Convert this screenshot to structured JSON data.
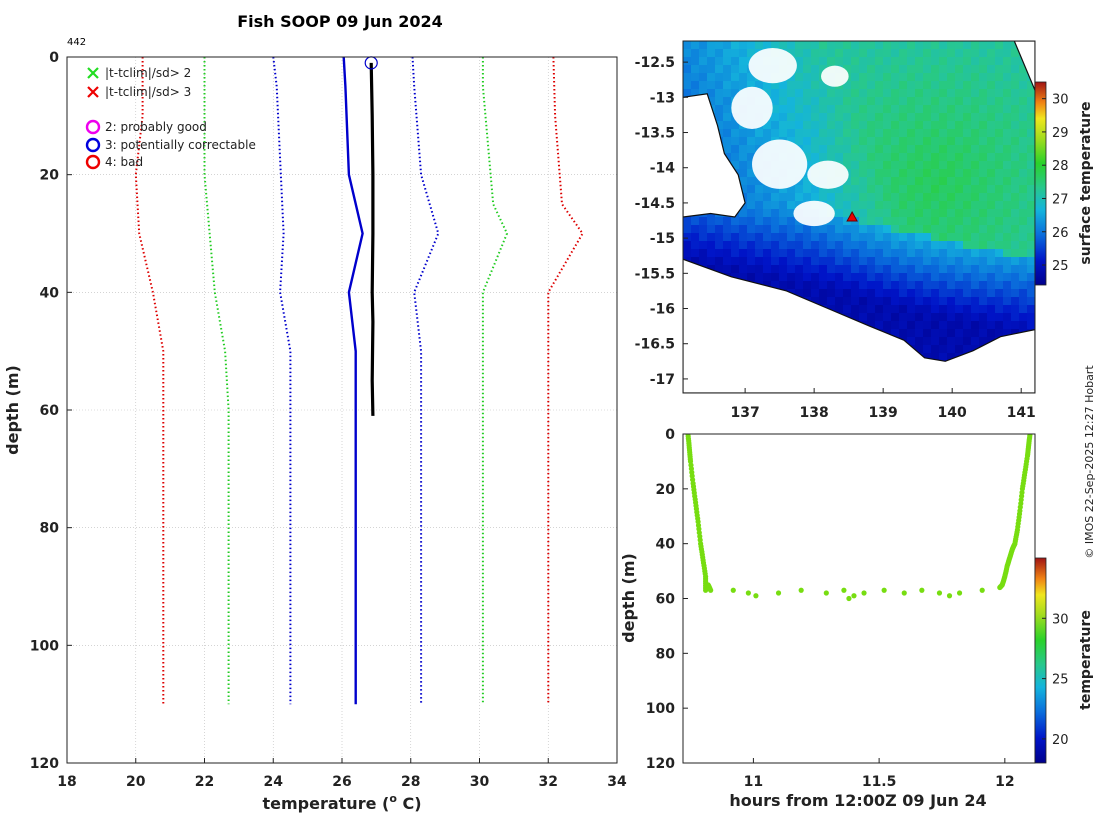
{
  "figure": {
    "title": "Fish SOOP 09 Jun 2024",
    "profile_id": "442",
    "credit": "© IMOS 22-Sep-2025 12:27 Hobart"
  },
  "legend": {
    "items": [
      {
        "label": "|t-tclim|/sd> 2",
        "symbol": "x",
        "color": "#22dd22"
      },
      {
        "label": "|t-tclim|/sd> 3",
        "symbol": "x",
        "color": "#ee0000"
      },
      {
        "label": "2: probably good",
        "symbol": "o",
        "color": "#ee00ee"
      },
      {
        "label": "3: potentially correctable",
        "symbol": "o",
        "color": "#0000dd"
      },
      {
        "label": "4: bad",
        "symbol": "o",
        "color": "#ee0000"
      }
    ]
  },
  "colors": {
    "profile": "#000000",
    "clim_mean": "#0000cc",
    "sd2": "#22cc22",
    "sd3": "#dd0000",
    "qc_marker": "#0000cc",
    "flag_marker": "#ee0000",
    "track_point": "#77dd11"
  },
  "chart_data": [
    {
      "id": "profile",
      "type": "line",
      "xlabel": "temperature (",
      "xlabel_sup": "o",
      "xlabel_tail": " C)",
      "ylabel": "depth (m)",
      "xlim": [
        18,
        34
      ],
      "ylim": [
        120,
        0
      ],
      "xticks": [
        18,
        20,
        22,
        24,
        26,
        28,
        30,
        32,
        34
      ],
      "yticks": [
        0,
        20,
        40,
        60,
        80,
        100,
        120
      ],
      "grid": true,
      "series": [
        {
          "name": "measured temperature",
          "style": "solid-thick",
          "color": "#000000",
          "x": [
            26.85,
            26.88,
            26.9,
            26.9,
            26.88,
            26.9,
            26.88,
            26.9
          ],
          "y": [
            1,
            10,
            20,
            30,
            40,
            45,
            55,
            61
          ]
        },
        {
          "name": "climatology mean",
          "style": "solid",
          "color": "#0000cc",
          "x": [
            26.05,
            26.1,
            26.2,
            26.6,
            26.2,
            26.4,
            26.4,
            26.4
          ],
          "y": [
            0,
            5,
            20,
            30,
            40,
            50,
            60,
            110
          ]
        },
        {
          "name": "clim -2sd",
          "style": "dotted",
          "color": "#0000cc",
          "x": [
            24.0,
            24.1,
            24.3,
            24.2,
            24.5,
            24.5
          ],
          "y": [
            0,
            5,
            30,
            40,
            50,
            110
          ]
        },
        {
          "name": "clim +2sd",
          "style": "dotted",
          "color": "#0000cc",
          "x": [
            28.05,
            28.1,
            28.3,
            28.8,
            28.1,
            28.3,
            28.3
          ],
          "y": [
            0,
            5,
            20,
            30,
            40,
            50,
            110
          ]
        },
        {
          "name": "clim -3sd low",
          "style": "dotted",
          "color": "#22cc22",
          "x": [
            22.0,
            22.0,
            22.0,
            22.3,
            22.6,
            22.7,
            22.7
          ],
          "y": [
            0,
            10,
            20,
            40,
            50,
            60,
            110
          ]
        },
        {
          "name": "clim +3sd high",
          "style": "dotted",
          "color": "#22cc22",
          "x": [
            30.1,
            30.1,
            30.4,
            30.8,
            30.1,
            30.1
          ],
          "y": [
            0,
            5,
            25,
            30,
            40,
            110
          ]
        },
        {
          "name": "clim -4sd low",
          "style": "dotted",
          "color": "#dd0000",
          "x": [
            20.2,
            20.2,
            20.0,
            20.1,
            20.5,
            20.8,
            20.8
          ],
          "y": [
            0,
            10,
            20,
            30,
            40,
            50,
            110
          ]
        },
        {
          "name": "clim +4sd high",
          "style": "dotted",
          "color": "#dd0000",
          "x": [
            32.15,
            32.2,
            32.4,
            33.0,
            32.0,
            32.0
          ],
          "y": [
            0,
            10,
            25,
            30,
            40,
            110
          ]
        }
      ],
      "markers": [
        {
          "name": "qc-flag-3-marker",
          "symbol": "o",
          "color": "#0000cc",
          "x": 26.85,
          "y": 1
        }
      ]
    },
    {
      "id": "map",
      "type": "heatmap",
      "xlim": [
        136.1,
        141.2
      ],
      "ylim": [
        -17.2,
        -12.2
      ],
      "xticks": [
        137,
        138,
        139,
        140,
        141
      ],
      "yticks": [
        -12.5,
        -13,
        -13.5,
        -14,
        -14.5,
        -15,
        -15.5,
        -16,
        -16.5,
        -17
      ],
      "colorbar": {
        "label": "surface temperature",
        "range": [
          24.4,
          30.5
        ],
        "ticks": [
          25,
          26,
          27,
          28,
          29,
          30
        ]
      },
      "sst_gradient": {
        "east_value": 27.2,
        "west_value": 25.0,
        "south_value": 24.8,
        "warm_center": [
          139.8,
          -14.2
        ]
      },
      "land_mask": [
        {
          "name": "north-west-coast",
          "points": [
            [
              136.1,
              -13.0
            ],
            [
              136.45,
              -12.95
            ],
            [
              136.6,
              -13.4
            ],
            [
              136.7,
              -13.8
            ],
            [
              136.9,
              -14.1
            ],
            [
              137.0,
              -14.5
            ],
            [
              136.85,
              -14.7
            ],
            [
              136.5,
              -14.65
            ],
            [
              136.1,
              -14.7
            ]
          ]
        },
        {
          "name": "south-coast",
          "points": [
            [
              136.1,
              -15.3
            ],
            [
              136.8,
              -15.55
            ],
            [
              137.6,
              -15.75
            ],
            [
              138.2,
              -16.0
            ],
            [
              138.8,
              -16.25
            ],
            [
              139.3,
              -16.45
            ],
            [
              139.6,
              -16.7
            ],
            [
              139.9,
              -16.75
            ],
            [
              140.3,
              -16.6
            ],
            [
              140.7,
              -16.4
            ],
            [
              141.2,
              -16.3
            ],
            [
              141.2,
              -17.2
            ],
            [
              136.1,
              -17.2
            ]
          ]
        },
        {
          "name": "north-east-coast",
          "points": [
            [
              140.9,
              -12.2
            ],
            [
              141.2,
              -12.2
            ],
            [
              141.2,
              -12.9
            ]
          ]
        }
      ],
      "cloud_patches": [
        {
          "center": [
            137.4,
            -12.55
          ],
          "rx": 0.35,
          "ry": 0.25
        },
        {
          "center": [
            137.1,
            -13.15
          ],
          "rx": 0.3,
          "ry": 0.3
        },
        {
          "center": [
            137.5,
            -13.95
          ],
          "rx": 0.4,
          "ry": 0.35
        },
        {
          "center": [
            138.2,
            -14.1
          ],
          "rx": 0.3,
          "ry": 0.2
        },
        {
          "center": [
            138.0,
            -14.65
          ],
          "rx": 0.3,
          "ry": 0.18
        },
        {
          "center": [
            138.3,
            -12.7
          ],
          "rx": 0.2,
          "ry": 0.15
        }
      ],
      "station": {
        "lon": 138.55,
        "lat": -14.7,
        "symbol": "triangle",
        "color": "#ee0000"
      }
    },
    {
      "id": "track",
      "type": "scatter",
      "xlabel": "hours from 12:00Z 09 Jun 24",
      "ylabel": "depth (m)",
      "xlim": [
        10.72,
        12.12
      ],
      "ylim": [
        120,
        0
      ],
      "xticks": [
        11,
        11.5,
        12
      ],
      "yticks": [
        0,
        20,
        40,
        60,
        80,
        100,
        120
      ],
      "colorbar": {
        "label": "temperature",
        "range": [
          18,
          35
        ],
        "ticks": [
          20,
          25,
          30
        ]
      },
      "point_value": 26.9,
      "descent": {
        "x": [
          10.74,
          10.745,
          10.75,
          10.76,
          10.77,
          10.78,
          10.79,
          10.8,
          10.81,
          10.81,
          10.82,
          10.83
        ],
        "y": [
          0,
          5,
          10,
          18,
          25,
          32,
          40,
          46,
          52,
          57,
          55,
          57
        ]
      },
      "ascent": {
        "x": [
          11.98,
          11.99,
          12.0,
          12.01,
          12.02,
          12.03,
          12.04,
          12.05,
          12.06,
          12.07,
          12.08,
          12.09,
          12.095,
          12.1
        ],
        "y": [
          56,
          55,
          52,
          48,
          45,
          42,
          40,
          35,
          28,
          20,
          14,
          8,
          4,
          0
        ]
      },
      "dwell": {
        "x": [
          10.92,
          10.98,
          11.01,
          11.1,
          11.19,
          11.29,
          11.36,
          11.38,
          11.4,
          11.44,
          11.52,
          11.6,
          11.67,
          11.74,
          11.78,
          11.82,
          11.91
        ],
        "y": [
          57,
          58,
          59,
          58,
          57,
          58,
          57,
          60,
          59,
          58,
          57,
          58,
          57,
          58,
          59,
          58,
          57
        ]
      }
    }
  ]
}
